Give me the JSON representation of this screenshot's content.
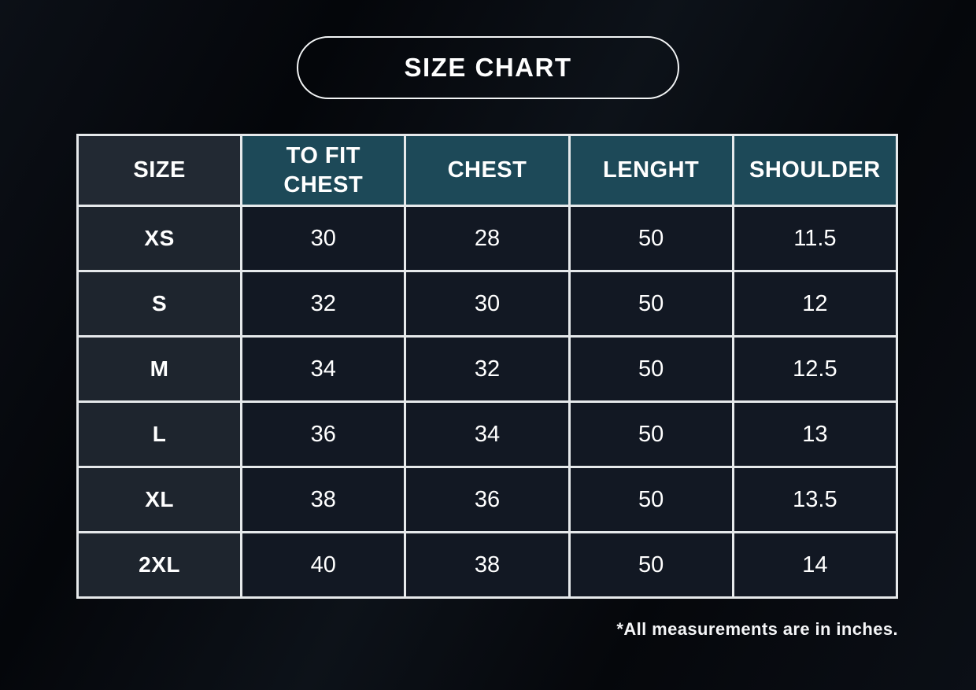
{
  "title": "SIZE CHART",
  "chart_data": {
    "type": "table",
    "title": "SIZE CHART",
    "columns": [
      "SIZE",
      "TO FIT CHEST",
      "CHEST",
      "LENGHT",
      "SHOULDER"
    ],
    "rows": [
      [
        "XS",
        "30",
        "28",
        "50",
        "11.5"
      ],
      [
        "S",
        "32",
        "30",
        "50",
        "12"
      ],
      [
        "M",
        "34",
        "32",
        "50",
        "12.5"
      ],
      [
        "L",
        "36",
        "34",
        "50",
        "13"
      ],
      [
        "XL",
        "38",
        "36",
        "50",
        "13.5"
      ],
      [
        "2XL",
        "40",
        "38",
        "50",
        "14"
      ]
    ],
    "footnote": "*All measurements are in inches.",
    "units": "inches"
  },
  "colors": {
    "page_background": "#05070c",
    "table_border": "#e6e9eb",
    "header_teal": "#1d4958",
    "header_size_cell": "#222933",
    "size_column_cell": "#1e252e",
    "value_cell": "#121823",
    "text": "#ffffff"
  }
}
